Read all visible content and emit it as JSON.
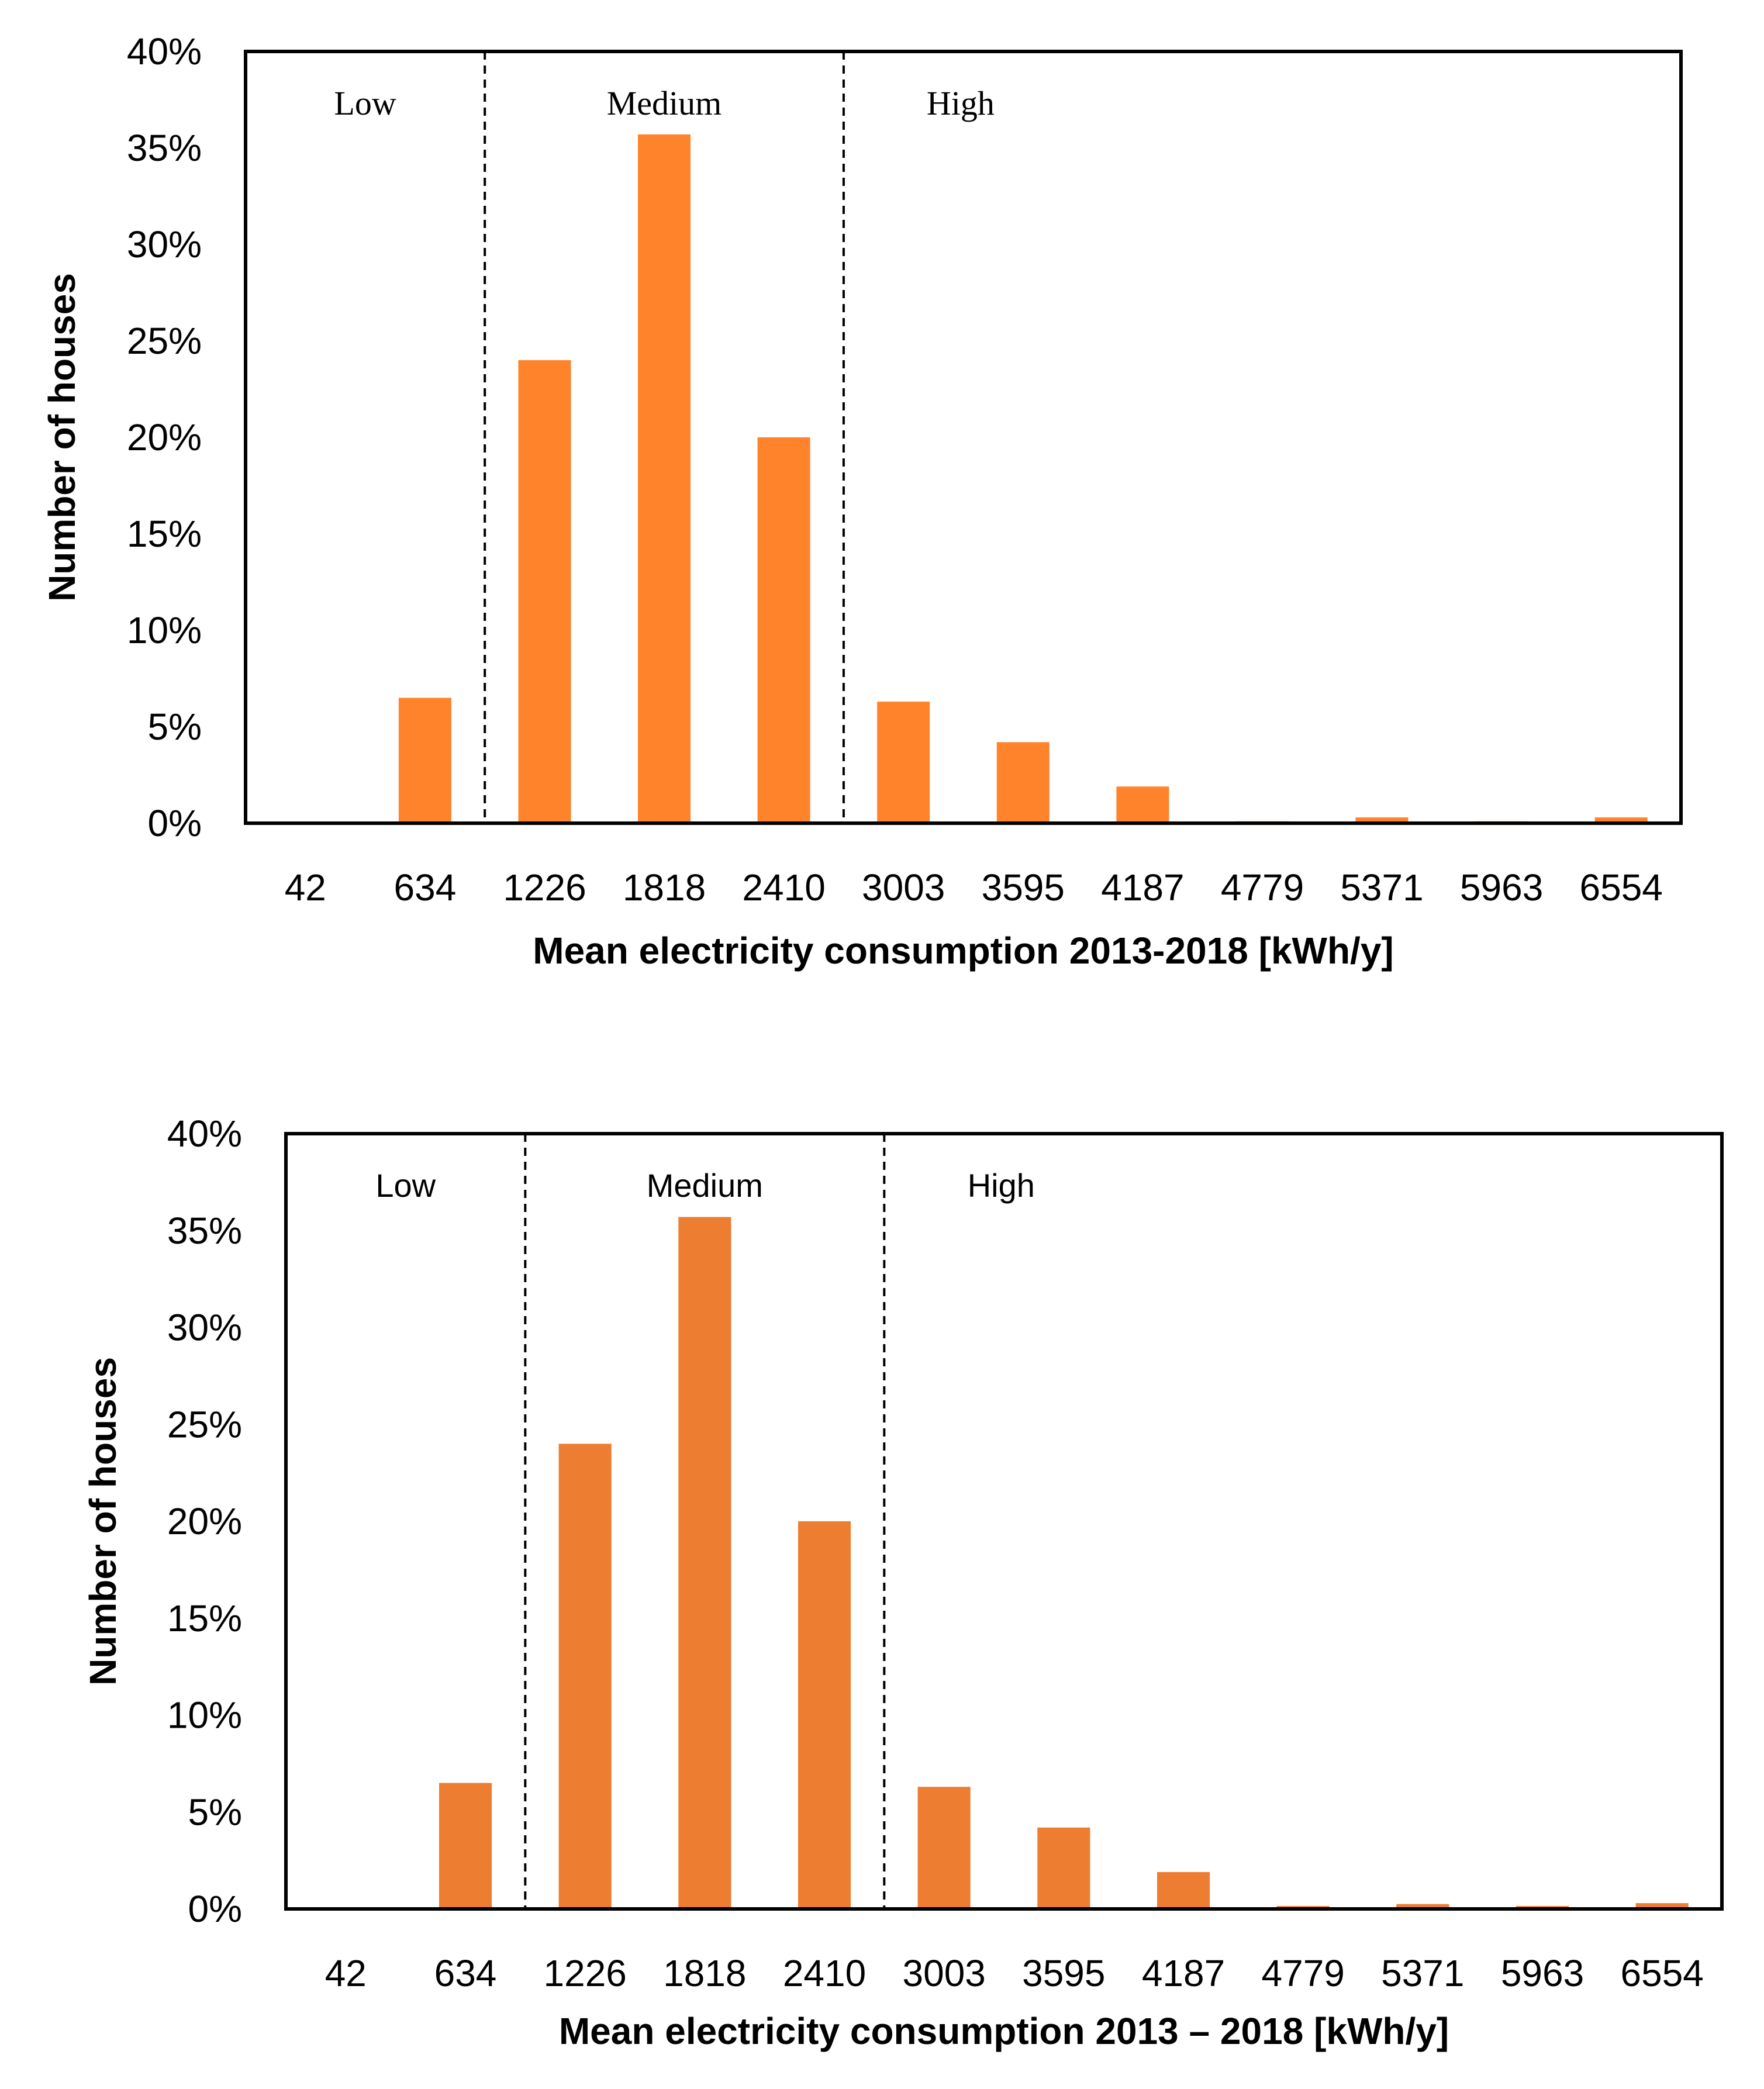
{
  "chart_data": [
    {
      "type": "bar",
      "title": "",
      "xlabel": "Mean electricity consumption 2013-2018 [kWh/y]",
      "ylabel": "Number of houses",
      "categories": [
        "42",
        "634",
        "1226",
        "1818",
        "2410",
        "3003",
        "3595",
        "4187",
        "4779",
        "5371",
        "5963",
        "6554"
      ],
      "values": [
        0.0,
        6.5,
        24.0,
        35.7,
        20.0,
        6.3,
        4.2,
        1.9,
        0.1,
        0.3,
        0.1,
        0.3
      ],
      "ylim": [
        0,
        40
      ],
      "yticks": [
        "0%",
        "5%",
        "10%",
        "15%",
        "20%",
        "25%",
        "30%",
        "35%",
        "40%"
      ],
      "bar_color": "#FF832B",
      "grid": false,
      "region_font": "serif",
      "region_dividers_between_category_index": [
        1.5,
        4.5
      ],
      "regions": [
        {
          "label": "Low",
          "position": "left"
        },
        {
          "label": "Medium",
          "position": "center"
        },
        {
          "label": "High",
          "position": "right"
        }
      ]
    },
    {
      "type": "bar",
      "title": "",
      "xlabel": "Mean electricity consumption 2013 – 2018 [kWh/y]",
      "ylabel": "Number of houses",
      "categories": [
        "42",
        "634",
        "1226",
        "1818",
        "2410",
        "3003",
        "3595",
        "4187",
        "4779",
        "5371",
        "5963",
        "6554"
      ],
      "values": [
        0.05,
        6.5,
        24.0,
        35.7,
        20.0,
        6.3,
        4.2,
        1.9,
        0.15,
        0.25,
        0.15,
        0.3
      ],
      "ylim": [
        0,
        40
      ],
      "yticks": [
        "0%",
        "5%",
        "10%",
        "15%",
        "20%",
        "25%",
        "30%",
        "35%",
        "40%"
      ],
      "bar_color": "#ED7D31",
      "grid": false,
      "region_font": "sans",
      "region_dividers_between_category_index": [
        1.5,
        4.5
      ],
      "regions": [
        {
          "label": "Low",
          "position": "left"
        },
        {
          "label": "Medium",
          "position": "center"
        },
        {
          "label": "High",
          "position": "right"
        }
      ]
    }
  ]
}
